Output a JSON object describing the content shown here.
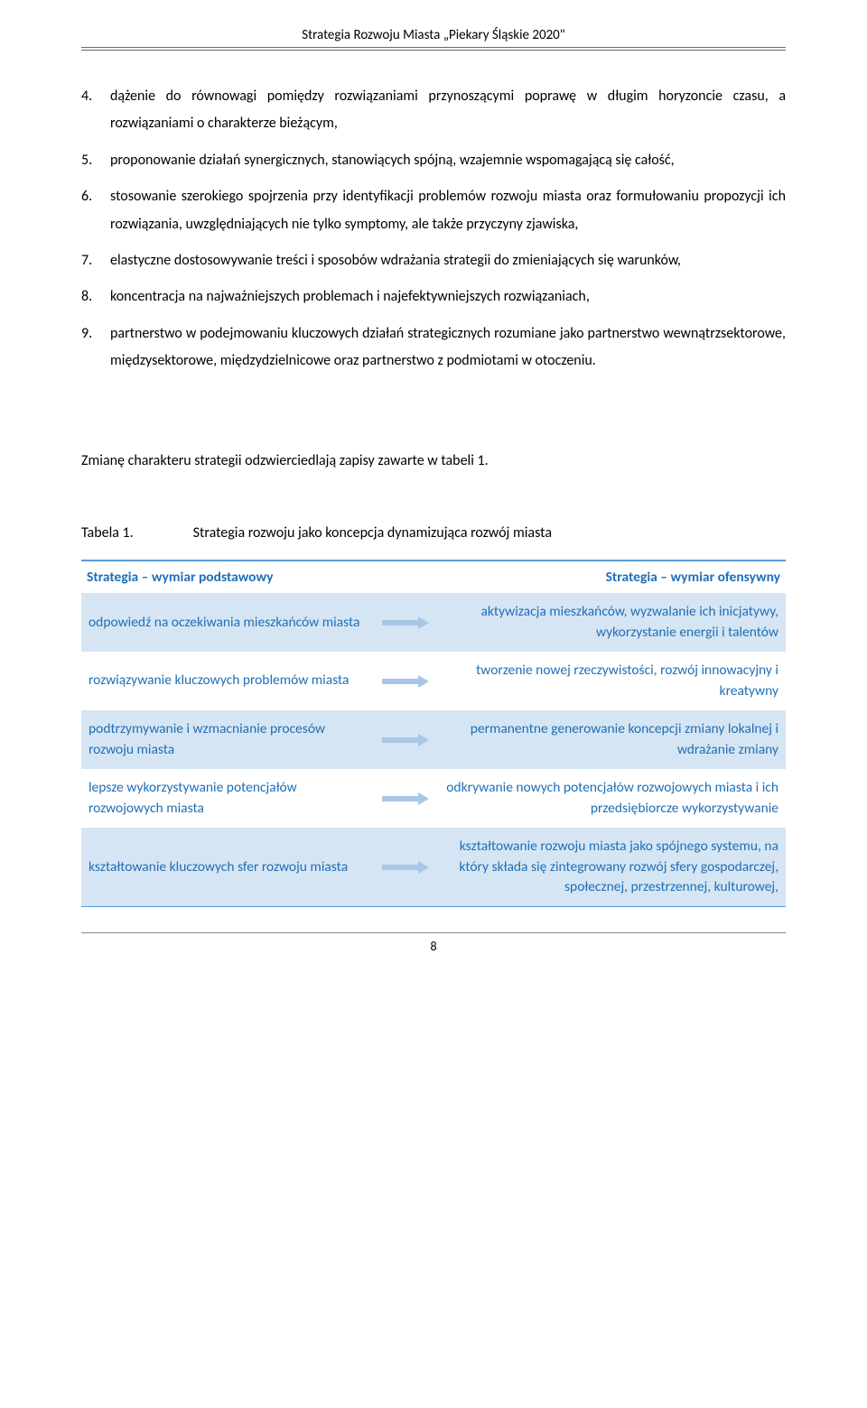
{
  "header": {
    "title": "Strategia Rozwoju Miasta „Piekary Śląskie 2020\""
  },
  "list": [
    {
      "n": "4.",
      "t": "dążenie do równowagi pomiędzy rozwiązaniami przynoszącymi poprawę w długim horyzoncie czasu, a rozwiązaniami o charakterze bieżącym,"
    },
    {
      "n": "5.",
      "t": "proponowanie działań synergicznych, stanowiących spójną, wzajemnie wspomagającą się całość,"
    },
    {
      "n": "6.",
      "t": "stosowanie szerokiego spojrzenia przy identyfikacji problemów rozwoju miasta oraz formułowaniu propozycji ich rozwiązania, uwzględniających nie tylko symptomy, ale także przyczyny zjawiska,"
    },
    {
      "n": "7.",
      "t": "elastyczne dostosowywanie treści i sposobów wdrażania strategii do zmieniających się warunków,"
    },
    {
      "n": "8.",
      "t": "koncentracja na najważniejszych problemach i najefektywniejszych rozwiązaniach,"
    },
    {
      "n": "9.",
      "t": "partnerstwo w podejmowaniu kluczowych działań strategicznych rozumiane jako partnerstwo wewnątrzsektorowe, międzysektorowe, międzydzielnicowe oraz partnerstwo z podmiotami w otoczeniu."
    }
  ],
  "intro_para": "Zmianę charakteru strategii odzwierciedlają zapisy zawarte w tabeli 1.",
  "table": {
    "label": "Tabela 1.",
    "caption": "Strategia rozwoju jako koncepcja dynamizująca rozwój miasta",
    "header_left": "Strategia – wymiar podstawowy",
    "header_right": "Strategia – wymiar ofensywny",
    "arrow_fill": "#a8c7e6",
    "rows": [
      {
        "left": "odpowiedź na oczekiwania mieszkańców miasta",
        "right": "aktywizacja mieszkańców, wyzwalanie ich inicjatywy, wykorzystanie energii i talentów",
        "band": true
      },
      {
        "left": "rozwiązywanie kluczowych problemów miasta",
        "right": "tworzenie nowej rzeczywistości, rozwój innowacyjny i kreatywny",
        "band": false
      },
      {
        "left": "podtrzymywanie i wzmacnianie procesów rozwoju miasta",
        "right": "permanentne generowanie koncepcji zmiany lokalnej i wdrażanie zmiany",
        "band": true
      },
      {
        "left": "lepsze wykorzystywanie potencjałów rozwojowych miasta",
        "right": "odkrywanie nowych potencjałów rozwojowych miasta i ich przedsiębiorcze wykorzystywanie",
        "band": false
      },
      {
        "left": "kształtowanie kluczowych sfer rozwoju miasta",
        "right": "kształtowanie rozwoju miasta jako spójnego systemu, na który składa się zintegrowany rozwój sfery gospodarczej, społecznej, przestrzennej, kulturowej,",
        "band": true
      }
    ]
  },
  "page_number": "8",
  "colors": {
    "accent": "#1f6fb7",
    "band": "#d6e5f3",
    "border": "#5b9bd5"
  }
}
